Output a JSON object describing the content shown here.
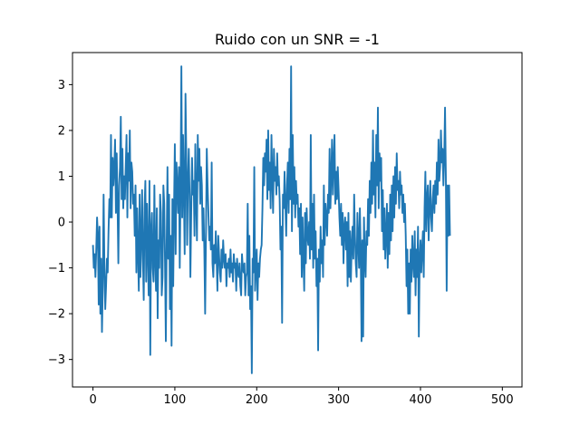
{
  "chart_data": {
    "type": "line",
    "title": "Ruido con un SNR = -1",
    "xlabel": "",
    "ylabel": "",
    "xlim": [
      -25,
      524
    ],
    "ylim": [
      -3.6,
      3.7
    ],
    "xticks": [
      0,
      100,
      200,
      300,
      400,
      500
    ],
    "xtick_labels": [
      "0",
      "100",
      "200",
      "300",
      "400",
      "500"
    ],
    "yticks": [
      -3,
      -2,
      -1,
      0,
      1,
      2,
      3
    ],
    "ytick_labels": [
      "−3",
      "−2",
      "−1",
      "0",
      "1",
      "2",
      "3"
    ],
    "grid": false,
    "legend": "none",
    "series": [
      {
        "color": "#1f77b4",
        "x_start": 0,
        "x_step": 1,
        "y": [
          -0.5,
          -1.0,
          -0.7,
          -1.2,
          -0.6,
          0.1,
          -0.3,
          -1.8,
          -0.1,
          -2.0,
          -0.8,
          -2.4,
          -1.4,
          0.6,
          -1.0,
          -1.9,
          -1.4,
          -0.8,
          -1.1,
          -0.2,
          0.5,
          0.1,
          1.9,
          0.1,
          1.4,
          0.8,
          1.2,
          1.8,
          0.2,
          1.5,
          0.4,
          -0.9,
          0.8,
          1.2,
          2.3,
          0.5,
          1.6,
          0.3,
          1.0,
          0.5,
          1.2,
          1.9,
          0.1,
          1.5,
          0.9,
          2.0,
          0.3,
          1.3,
          1.1,
          0.4,
          0.6,
          -0.3,
          0.8,
          -1.1,
          0.3,
          -0.7,
          -1.5,
          0.6,
          -1.2,
          -0.4,
          0.7,
          -0.8,
          -1.7,
          0.3,
          0.9,
          -1.3,
          0.4,
          -0.6,
          -1.6,
          0.9,
          -2.9,
          -0.2,
          0.2,
          -1.0,
          -1.3,
          0.8,
          -0.8,
          -1.5,
          0.3,
          -2.1,
          -0.4,
          -1.0,
          0.6,
          0.2,
          -1.6,
          -1.2,
          0.8,
          0.4,
          -0.9,
          -2.6,
          -0.5,
          1.2,
          -0.8,
          0.6,
          -1.9,
          -0.3,
          -2.7,
          0.5,
          -1.4,
          0.3,
          1.7,
          -0.7,
          1.3,
          0.8,
          0.2,
          1.2,
          -1.0,
          0.8,
          3.4,
          0.1,
          1.9,
          0.7,
          -0.7,
          2.8,
          1.4,
          -0.5,
          0.9,
          1.6,
          0.6,
          -1.2,
          0.2,
          1.4,
          0.6,
          0.9,
          -0.3,
          1.7,
          0.5,
          -0.4,
          1.9,
          0.9,
          1.6,
          0.4,
          1.2,
          0.8,
          -0.4,
          0.3,
          -0.6,
          -2.0,
          -0.3,
          1.6,
          0.8,
          0.2,
          -0.4,
          -0.1,
          -0.6,
          1.3,
          -0.9,
          -1.2,
          -0.5,
          -0.9,
          -0.2,
          -0.8,
          -1.5,
          -0.3,
          -0.7,
          -1.1,
          -1.3,
          -0.6,
          -1.0,
          -0.4,
          -0.8,
          -1.0,
          -0.7,
          -1.4,
          -0.9,
          -1.0,
          -0.8,
          -1.2,
          -0.6,
          -1.1,
          -0.9,
          -1.3,
          -0.7,
          -1.0,
          -0.9,
          -1.5,
          -0.8,
          -1.1,
          -1.2,
          -0.9,
          -1.4,
          -1.6,
          -0.7,
          -1.0,
          -1.1,
          -0.9,
          -1.6,
          -1.2,
          -1.1,
          0.4,
          -1.6,
          -0.3,
          -1.9,
          -1.4,
          -3.3,
          -0.8,
          -1.1,
          1.2,
          -1.5,
          -1.0,
          -0.6,
          -1.7,
          -0.9,
          -1.2,
          -0.8,
          -0.6,
          -0.5,
          0.3,
          1.4,
          0.8,
          1.5,
          1.1,
          1.8,
          0.5,
          2.0,
          0.7,
          1.3,
          0.3,
          1.9,
          1.0,
          0.2,
          1.6,
          0.9,
          1.2,
          0.6,
          1.5,
          0.8,
          1.0,
          0.5,
          -0.6,
          -0.1,
          -2.2,
          0.6,
          0.3,
          1.1,
          0.4,
          -0.3,
          0.8,
          1.3,
          0.2,
          1.6,
          0.5,
          3.4,
          -0.2,
          1.9,
          0.4,
          1.2,
          0.1,
          0.9,
          0.4,
          0.6,
          -0.1,
          0.3,
          -0.7,
          0.4,
          -1.2,
          0.1,
          -0.8,
          -1.5,
          0.2,
          -0.9,
          0.3,
          -0.3,
          -0.5,
          0.0,
          -0.8,
          1.9,
          -0.6,
          0.4,
          -1.0,
          0.6,
          -0.8,
          -0.2,
          -1.4,
          -0.8,
          -2.8,
          -0.6,
          -1.3,
          -0.1,
          -0.9,
          -0.4,
          -1.2,
          0.8,
          -0.5,
          0.4,
          0.1,
          -0.3,
          0.6,
          0.2,
          1.6,
          0.3,
          1.0,
          1.8,
          0.6,
          1.3,
          1.9,
          0.4,
          1.1,
          0.5,
          1.2,
          0.7,
          0.1,
          -0.3,
          0.4,
          -0.5,
          0.2,
          -0.9,
          -0.1,
          0.1,
          -0.6,
          0.0,
          -1.4,
          0.2,
          -1.2,
          -0.2,
          -1.3,
          -0.5,
          -0.1,
          -0.8,
          0.6,
          -0.3,
          -0.9,
          -1.2,
          0.2,
          -0.4,
          -1.0,
          0.3,
          -0.6,
          -2.6,
          -0.4,
          -2.5,
          0.1,
          -0.8,
          -1.2,
          -0.2,
          -0.5,
          0.5,
          -0.3,
          0.9,
          0.2,
          1.3,
          0.4,
          2.0,
          0.6,
          1.3,
          0.1,
          1.9,
          0.8,
          2.5,
          0.3,
          1.5,
          0.9,
          1.4,
          -0.2,
          0.7,
          -0.6,
          0.3,
          -0.8,
          -0.3,
          0.4,
          -1.0,
          0.2,
          -0.7,
          0.6,
          -0.4,
          0.8,
          -0.2,
          1.0,
          0.1,
          1.2,
          0.4,
          1.5,
          0.7,
          0.9,
          0.3,
          1.1,
          0.6,
          0.8,
          0.2,
          0.6,
          0.0,
          0.4,
          -0.3,
          -1.4,
          -0.6,
          -2.0,
          -0.9,
          -2.0,
          -0.6,
          -1.3,
          -0.3,
          -0.9,
          -1.2,
          -0.2,
          -1.6,
          -0.6,
          -1.2,
          -0.1,
          -2.5,
          -0.8,
          -0.4,
          -1.1,
          -0.6,
          -0.2,
          -1.2,
          0.3,
          1.1,
          -0.2,
          0.5,
          0.8,
          -0.4,
          0.3,
          0.9,
          0.1,
          -0.2,
          0.5,
          0.8,
          0.2,
          0.9,
          0.4,
          1.3,
          0.6,
          1.8,
          0.9,
          1.2,
          2.0,
          1.3,
          1.6,
          0.8,
          1.4,
          2.5,
          1.0,
          -1.5,
          0.8,
          -0.3,
          0.8,
          -0.3
        ]
      }
    ]
  }
}
